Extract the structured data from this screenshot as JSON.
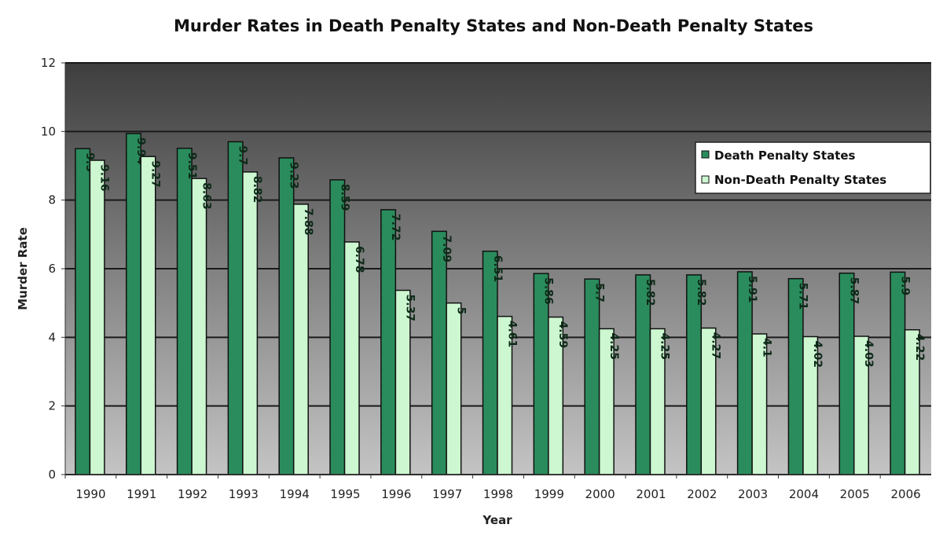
{
  "chart_data": {
    "type": "bar",
    "title": "Murder Rates in Death Penalty States and Non-Death Penalty States",
    "xlabel": "Year",
    "ylabel": "Murder Rate",
    "ylim": [
      0,
      12
    ],
    "yticks": [
      0,
      2,
      4,
      6,
      8,
      10,
      12
    ],
    "grid": true,
    "legend_position": "top-right",
    "categories": [
      "1990",
      "1991",
      "1992",
      "1993",
      "1994",
      "1995",
      "1996",
      "1997",
      "1998",
      "1999",
      "2000",
      "2001",
      "2002",
      "2003",
      "2004",
      "2005",
      "2006"
    ],
    "series": [
      {
        "name": "Death Penalty States",
        "color": "#2a8c5c",
        "values": [
          9.5,
          9.94,
          9.51,
          9.7,
          9.23,
          8.59,
          7.72,
          7.09,
          6.51,
          5.86,
          5.7,
          5.82,
          5.82,
          5.91,
          5.71,
          5.87,
          5.9
        ]
      },
      {
        "name": "Non-Death Penalty States",
        "color": "#ccf7d0",
        "values": [
          9.16,
          9.27,
          8.63,
          8.82,
          7.88,
          6.78,
          5.37,
          5,
          4.61,
          4.59,
          4.25,
          4.25,
          4.27,
          4.1,
          4.02,
          4.03,
          4.22
        ]
      }
    ],
    "data_labels": true,
    "background": {
      "top": "#3e3e3e",
      "bottom": "#c4c4c4"
    }
  }
}
